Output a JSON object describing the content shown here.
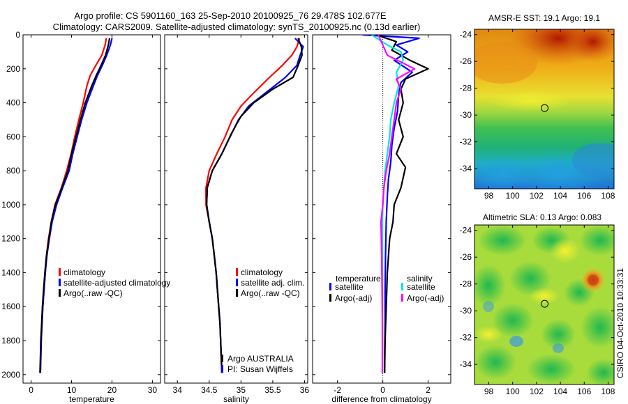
{
  "header": {
    "line1": "Argo profile: CS 5901160_163 25-Sep-2010 20100925_76 29.478S 102.677E",
    "line2": "Climatology: CARS2009. Satellite-adjusted climatology: synTS_20100925.nc (0.13d earlier)"
  },
  "side_label": "CSIRO 04-Oct-2010 10:33:31",
  "colors": {
    "climatology": "#ff0000",
    "satellite": "#0000ff",
    "argo": "#000000",
    "cyan": "#00e5e5",
    "magenta": "#ff00ff"
  },
  "chart_data": [
    {
      "type": "line",
      "xlabel": "temperature",
      "xlim": [
        -2,
        32
      ],
      "ylim": [
        0,
        2050
      ],
      "xticks": [
        0,
        10,
        20,
        30
      ],
      "yticks": [
        0,
        200,
        400,
        600,
        800,
        1000,
        1200,
        1400,
        1600,
        1800,
        2000
      ],
      "series": [
        {
          "name": "climatology",
          "color": "#ff0000",
          "points": [
            [
              18.6,
              20
            ],
            [
              18.3,
              60
            ],
            [
              17.5,
              120
            ],
            [
              16.0,
              180
            ],
            [
              14.6,
              240
            ],
            [
              13.8,
              300
            ],
            [
              12.9,
              400
            ],
            [
              11.8,
              500
            ],
            [
              10.8,
              600
            ],
            [
              9.9,
              700
            ],
            [
              8.8,
              800
            ],
            [
              7.5,
              900
            ],
            [
              5.9,
              1000
            ],
            [
              5.0,
              1100
            ],
            [
              4.3,
              1200
            ],
            [
              3.8,
              1300
            ],
            [
              3.5,
              1400
            ],
            [
              3.2,
              1500
            ],
            [
              2.9,
              1600
            ],
            [
              2.7,
              1700
            ],
            [
              2.5,
              1800
            ],
            [
              2.4,
              1900
            ],
            [
              2.3,
              1990
            ]
          ]
        },
        {
          "name": "satellite-adjusted climatology",
          "color": "#0000ff",
          "points": [
            [
              20.0,
              20
            ],
            [
              19.6,
              60
            ],
            [
              18.7,
              120
            ],
            [
              17.6,
              180
            ],
            [
              16.4,
              240
            ],
            [
              15.4,
              300
            ],
            [
              13.8,
              400
            ],
            [
              12.5,
              500
            ],
            [
              11.4,
              600
            ],
            [
              10.3,
              700
            ],
            [
              9.4,
              800
            ],
            [
              7.8,
              900
            ],
            [
              6.3,
              1000
            ],
            [
              5.2,
              1100
            ],
            [
              4.5,
              1200
            ],
            [
              3.9,
              1300
            ],
            [
              3.5,
              1400
            ],
            [
              3.2,
              1500
            ],
            [
              2.9,
              1600
            ],
            [
              2.7,
              1700
            ],
            [
              2.5,
              1800
            ],
            [
              2.4,
              1900
            ],
            [
              2.3,
              1990
            ]
          ]
        },
        {
          "name": "Argo(..raw -QC)",
          "color": "#000000",
          "points": [
            [
              19.4,
              20
            ],
            [
              19.1,
              60
            ],
            [
              18.4,
              120
            ],
            [
              17.3,
              180
            ],
            [
              16.1,
              240
            ],
            [
              15.0,
              300
            ],
            [
              13.4,
              400
            ],
            [
              12.2,
              500
            ],
            [
              11.1,
              600
            ],
            [
              10.0,
              700
            ],
            [
              9.1,
              800
            ],
            [
              7.6,
              900
            ],
            [
              6.0,
              1000
            ],
            [
              5.0,
              1100
            ],
            [
              4.4,
              1200
            ],
            [
              3.8,
              1300
            ],
            [
              3.4,
              1400
            ],
            [
              3.1,
              1500
            ],
            [
              2.8,
              1600
            ],
            [
              2.6,
              1700
            ],
            [
              2.4,
              1800
            ],
            [
              2.3,
              1900
            ],
            [
              2.2,
              1990
            ]
          ]
        }
      ],
      "legend": {
        "items": [
          "climatology",
          "satellite-adjusted climatology",
          "Argo(..raw -QC)"
        ]
      }
    },
    {
      "type": "line",
      "xlabel": "salinity",
      "xlim": [
        33.8,
        36.05
      ],
      "ylim": [
        0,
        2050
      ],
      "xticks": [
        34,
        34.5,
        35,
        35.5,
        36
      ],
      "xticklabels": [
        "34",
        "34.5",
        "35",
        "35.5",
        "36"
      ],
      "yticks": [
        0,
        200,
        400,
        600,
        800,
        1000,
        1200,
        1400,
        1600,
        1800,
        2000
      ],
      "series": [
        {
          "name": "climatology",
          "color": "#ff0000",
          "points": [
            [
              35.92,
              20
            ],
            [
              35.88,
              70
            ],
            [
              35.8,
              120
            ],
            [
              35.65,
              180
            ],
            [
              35.45,
              250
            ],
            [
              35.18,
              350
            ],
            [
              35.0,
              420
            ],
            [
              34.86,
              500
            ],
            [
              34.75,
              600
            ],
            [
              34.62,
              700
            ],
            [
              34.5,
              800
            ],
            [
              34.45,
              900
            ],
            [
              34.45,
              1000
            ],
            [
              34.5,
              1100
            ],
            [
              34.55,
              1200
            ],
            [
              34.58,
              1300
            ],
            [
              34.61,
              1400
            ],
            [
              34.63,
              1500
            ],
            [
              34.65,
              1600
            ],
            [
              34.67,
              1700
            ],
            [
              34.68,
              1800
            ],
            [
              34.69,
              1900
            ],
            [
              34.7,
              1990
            ]
          ]
        },
        {
          "name": "satellite adj. clim.",
          "color": "#0000ff",
          "points": [
            [
              35.85,
              20
            ],
            [
              35.98,
              70
            ],
            [
              35.93,
              120
            ],
            [
              35.88,
              180
            ],
            [
              35.7,
              250
            ],
            [
              35.36,
              350
            ],
            [
              35.12,
              420
            ],
            [
              34.96,
              500
            ],
            [
              34.83,
              600
            ],
            [
              34.7,
              700
            ],
            [
              34.55,
              800
            ],
            [
              34.47,
              900
            ],
            [
              34.46,
              1000
            ],
            [
              34.5,
              1100
            ],
            [
              34.55,
              1200
            ],
            [
              34.58,
              1300
            ],
            [
              34.61,
              1400
            ],
            [
              34.63,
              1500
            ],
            [
              34.65,
              1600
            ],
            [
              34.67,
              1700
            ],
            [
              34.68,
              1800
            ],
            [
              34.69,
              1900
            ],
            [
              34.7,
              1990
            ]
          ]
        },
        {
          "name": "Argo(..raw -QC)",
          "color": "#000000",
          "points": [
            [
              35.9,
              20
            ],
            [
              35.95,
              70
            ],
            [
              35.96,
              120
            ],
            [
              35.9,
              180
            ],
            [
              35.82,
              250
            ],
            [
              35.5,
              320
            ],
            [
              35.2,
              400
            ],
            [
              35.0,
              480
            ],
            [
              34.85,
              580
            ],
            [
              34.7,
              700
            ],
            [
              34.55,
              800
            ],
            [
              34.47,
              900
            ],
            [
              34.46,
              1000
            ],
            [
              34.5,
              1100
            ],
            [
              34.55,
              1200
            ],
            [
              34.58,
              1300
            ],
            [
              34.61,
              1400
            ],
            [
              34.63,
              1500
            ],
            [
              34.65,
              1600
            ],
            [
              34.67,
              1700
            ],
            [
              34.68,
              1800
            ],
            [
              34.69,
              1900
            ],
            [
              34.7,
              1990
            ]
          ]
        }
      ],
      "legend": {
        "items": [
          "climatology",
          "satellite adj. clim.",
          "Argo(..raw -QC)"
        ]
      },
      "annotations": [
        "Argo AUSTRALIA",
        "PI: Susan Wijffels"
      ]
    },
    {
      "type": "line",
      "xlabel": "difference from climatology",
      "xlim": [
        -3.1,
        3.0
      ],
      "ylim": [
        0,
        2050
      ],
      "xticks": [
        -2,
        0,
        2
      ],
      "yticks": [
        0,
        200,
        400,
        600,
        800,
        1000,
        1200,
        1400,
        1600,
        1800,
        2000
      ],
      "zero_line": true,
      "series": [
        {
          "name": "temperature satellite",
          "color": "#0000ff",
          "points": [
            [
              -0.9,
              0
            ],
            [
              1.6,
              20
            ],
            [
              0.6,
              60
            ],
            [
              1.1,
              100
            ],
            [
              0.5,
              150
            ],
            [
              1.3,
              220
            ],
            [
              0.8,
              280
            ],
            [
              0.7,
              350
            ],
            [
              0.65,
              450
            ],
            [
              0.5,
              550
            ],
            [
              0.4,
              650
            ],
            [
              0.35,
              750
            ],
            [
              0.25,
              850
            ],
            [
              0.2,
              950
            ],
            [
              0.15,
              1100
            ],
            [
              0.12,
              1300
            ],
            [
              0.1,
              1500
            ],
            [
              0.1,
              1700
            ],
            [
              0.08,
              1900
            ],
            [
              0.08,
              1990
            ]
          ]
        },
        {
          "name": "temperature Argo(-adj)",
          "color": "#000000",
          "points": [
            [
              -0.3,
              0
            ],
            [
              0.6,
              40
            ],
            [
              0.4,
              90
            ],
            [
              1.2,
              150
            ],
            [
              2.0,
              200
            ],
            [
              1.0,
              260
            ],
            [
              0.8,
              320
            ],
            [
              0.9,
              400
            ],
            [
              0.7,
              500
            ],
            [
              0.9,
              600
            ],
            [
              0.6,
              700
            ],
            [
              1.0,
              780
            ],
            [
              0.8,
              900
            ],
            [
              0.5,
              1000
            ],
            [
              0.45,
              1100
            ],
            [
              0.3,
              1200
            ],
            [
              0.2,
              1400
            ],
            [
              0.15,
              1600
            ],
            [
              0.1,
              1800
            ],
            [
              0.08,
              1990
            ]
          ]
        },
        {
          "name": "salinity satellite",
          "color": "#00e5e5",
          "points": [
            [
              -0.5,
              0
            ],
            [
              0.2,
              60
            ],
            [
              0.8,
              100
            ],
            [
              0.9,
              150
            ],
            [
              0.6,
              220
            ],
            [
              0.7,
              300
            ],
            [
              0.5,
              400
            ],
            [
              0.35,
              500
            ],
            [
              0.3,
              600
            ],
            [
              0.2,
              700
            ],
            [
              0.1,
              800
            ],
            [
              0.05,
              900
            ],
            [
              0.0,
              1000
            ],
            [
              -0.02,
              1100
            ],
            [
              -0.02,
              1300
            ],
            [
              -0.02,
              1500
            ],
            [
              -0.02,
              1700
            ],
            [
              -0.02,
              1900
            ],
            [
              -0.02,
              1990
            ]
          ]
        },
        {
          "name": "salinity Argo(-adj)",
          "color": "#ff00ff",
          "points": [
            [
              -0.2,
              0
            ],
            [
              0.0,
              60
            ],
            [
              0.2,
              120
            ],
            [
              1.4,
              200
            ],
            [
              0.6,
              260
            ],
            [
              0.8,
              320
            ],
            [
              0.6,
              400
            ],
            [
              0.5,
              500
            ],
            [
              0.4,
              600
            ],
            [
              0.3,
              700
            ],
            [
              0.15,
              800
            ],
            [
              0.05,
              900
            ],
            [
              0.0,
              1000
            ],
            [
              -0.08,
              1100
            ],
            [
              -0.05,
              1300
            ],
            [
              -0.03,
              1500
            ],
            [
              -0.02,
              1700
            ],
            [
              -0.02,
              1990
            ]
          ]
        }
      ],
      "legend": {
        "headers": [
          "temperature",
          "salinity"
        ],
        "items": [
          "satellite",
          "Argo(-adj)",
          "satellite",
          "Argo(-adj)"
        ]
      }
    },
    {
      "type": "heatmap",
      "title": "AMSR-E SST: 19.1 Argo: 19.1",
      "xlim": [
        96.8,
        108.5
      ],
      "ylim": [
        -35.5,
        -23.6
      ],
      "xticks": [
        98,
        100,
        102,
        104,
        106,
        108
      ],
      "yticks": [
        -24,
        -26,
        -28,
        -30,
        -32,
        -34
      ],
      "marker": [
        102.68,
        -29.48
      ]
    },
    {
      "type": "heatmap",
      "title": "Altimetric SLA: 0.13 Argo: 0.083",
      "xlim": [
        96.8,
        108.5
      ],
      "ylim": [
        -35.5,
        -23.6
      ],
      "xticks": [
        98,
        100,
        102,
        104,
        106,
        108
      ],
      "yticks": [
        -24,
        -26,
        -28,
        -30,
        -32,
        -34
      ],
      "marker": [
        102.68,
        -29.48
      ]
    }
  ]
}
